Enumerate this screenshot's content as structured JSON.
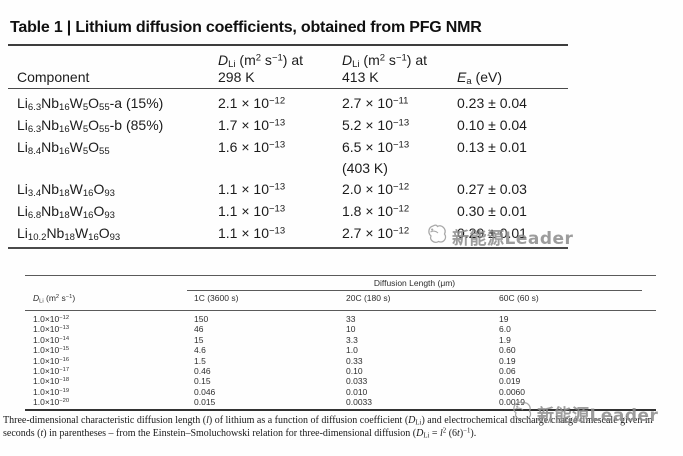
{
  "title": "Table 1 | Lithium diffusion coefficients, obtained from PFG NMR",
  "colors": {
    "rule_dark": "#3d3d3d",
    "watermark_gray": "#8c8c8c"
  },
  "table1": {
    "headers": {
      "component": "Component",
      "d298_top": "*D*~Li~ (m^2^ s^−1^) at",
      "d298_bottom": "298 K",
      "d413_top": "*D*~Li~ (m^2^ s^−1^) at",
      "d413_bottom": "413 K",
      "ea": "*E*~a~ (eV)"
    },
    "rows": [
      {
        "component": "Li~6.3~Nb~16~W~5~O~55~-a (15%)",
        "d298": "2.1 × 10^−12^",
        "d413": "2.7 × 10^−11^",
        "d413_note": "",
        "ea": "0.23 ± 0.04"
      },
      {
        "component": "Li~6.3~Nb~16~W~5~O~55~-b (85%)",
        "d298": "1.7 × 10^−13^",
        "d413": "5.2 × 10^−13^",
        "d413_note": "",
        "ea": "0.10 ± 0.04"
      },
      {
        "component": "Li~8.4~Nb~16~W~5~O~55~",
        "d298": "1.6 × 10^−13^",
        "d413": "6.5 × 10^−13^",
        "d413_note": "(403 K)",
        "ea": "0.13 ± 0.01"
      },
      {
        "component": "Li~3.4~Nb~18~W~16~O~93~",
        "d298": "1.1 × 10^−13^",
        "d413": "2.0 × 10^−12^",
        "d413_note": "",
        "ea": "0.27 ± 0.03"
      },
      {
        "component": "Li~6.8~Nb~18~W~16~O~93~",
        "d298": "1.1 × 10^−13^",
        "d413": "1.8 × 10^−12^",
        "d413_note": "",
        "ea": "0.30 ± 0.01"
      },
      {
        "component": "Li~10.2~Nb~18~W~16~O~93~",
        "d298": "1.1 × 10^−13^",
        "d413": "2.7 × 10^−12^",
        "d413_note": "",
        "ea": "0.29 ± 0.01"
      }
    ]
  },
  "table2": {
    "spanner": "Diffusion Length (μm)",
    "headers": [
      "*D*~Li~ (m^2^ s^−1^)",
      "1C (3600 s)",
      "20C (180 s)",
      "60C (60 s)"
    ],
    "rows": [
      [
        "1.0×10^−12^",
        "150",
        "33",
        "19"
      ],
      [
        "1.0×10^−13^",
        "46",
        "10",
        "6.0"
      ],
      [
        "1.0×10^−14^",
        "15",
        "3.3",
        "1.9"
      ],
      [
        "1.0×10^−15^",
        "4.6",
        "1.0",
        "0.60"
      ],
      [
        "1.0×10^−16^",
        "1.5",
        "0.33",
        "0.19"
      ],
      [
        "1.0×10^−17^",
        "0.46",
        "0.10",
        "0.06"
      ],
      [
        "1.0×10^−18^",
        "0.15",
        "0.033",
        "0.019"
      ],
      [
        "1.0×10^−19^",
        "0.046",
        "0.010",
        "0.0060"
      ],
      [
        "1.0×10^−20^",
        "0.015",
        "0.0033",
        "0.0019"
      ]
    ]
  },
  "caption": "Three-dimensional characteristic diffusion length (*l*) of lithium as a function of diffusion coefficient (*D*~Li~) and electrochemical discharge/charge timescale given in seconds (*t*) in parentheses – from the Einstein–Smoluchowski relation for three-dimensional diffusion (*D*~Li~ = *l*^2^ (6*t*)^−1^).",
  "watermark": {
    "text": "新能源Leader"
  }
}
